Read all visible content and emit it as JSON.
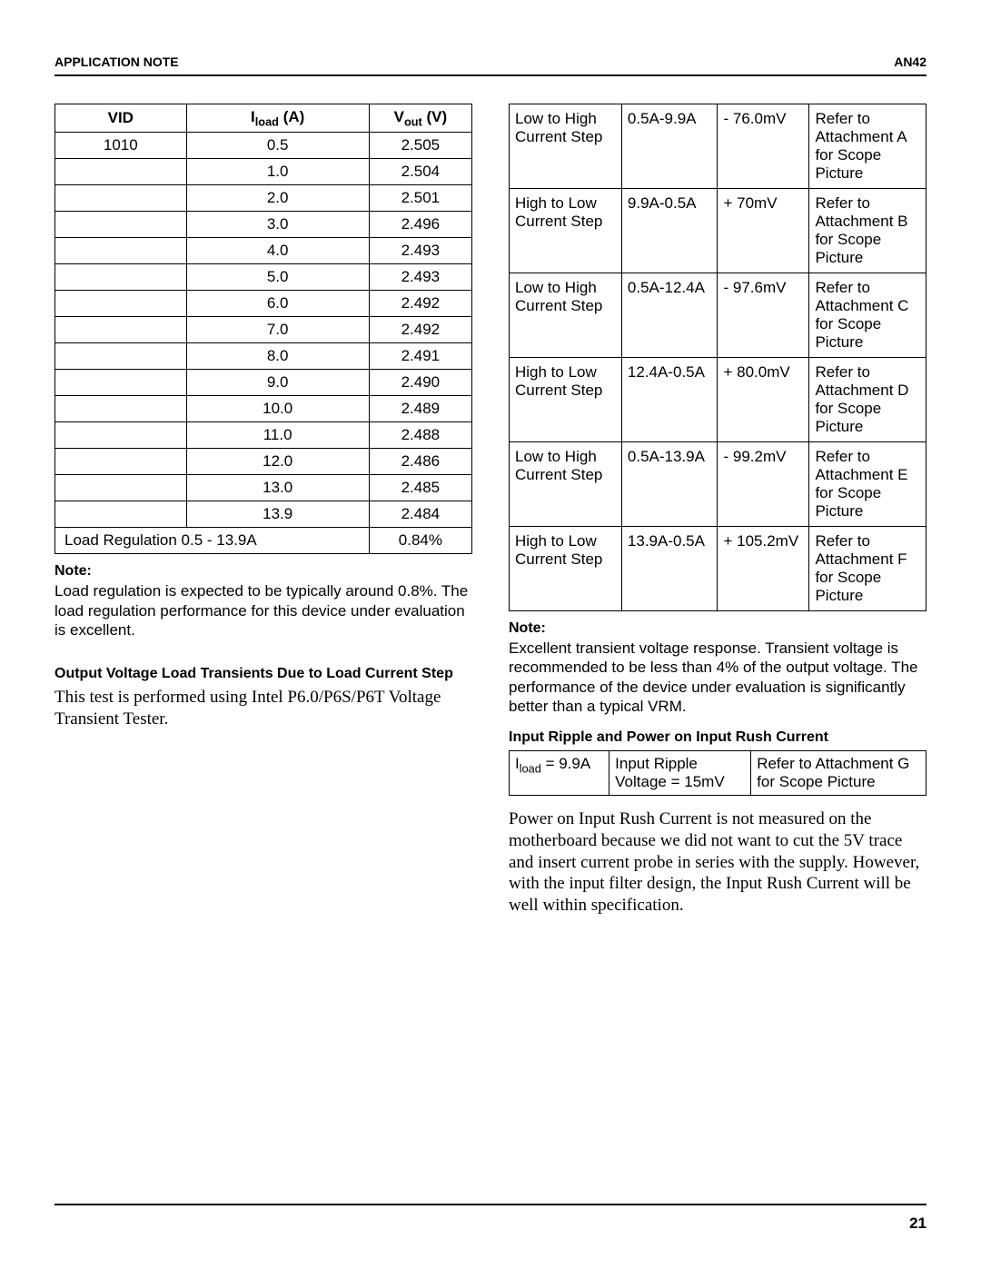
{
  "header": {
    "left": "APPLICATION NOTE",
    "right": "AN42"
  },
  "table1": {
    "headers": {
      "c1": "VID",
      "c2_pre": "I",
      "c2_sub": "load",
      "c2_post": " (A)",
      "c3_pre": "V",
      "c3_sub": "out",
      "c3_post": " (V)"
    },
    "rows": [
      {
        "vid": "1010",
        "iload": "0.5",
        "vout": "2.505"
      },
      {
        "vid": "",
        "iload": "1.0",
        "vout": "2.504"
      },
      {
        "vid": "",
        "iload": "2.0",
        "vout": "2.501"
      },
      {
        "vid": "",
        "iload": "3.0",
        "vout": "2.496"
      },
      {
        "vid": "",
        "iload": "4.0",
        "vout": "2.493"
      },
      {
        "vid": "",
        "iload": "5.0",
        "vout": "2.493"
      },
      {
        "vid": "",
        "iload": "6.0",
        "vout": "2.492"
      },
      {
        "vid": "",
        "iload": "7.0",
        "vout": "2.492"
      },
      {
        "vid": "",
        "iload": "8.0",
        "vout": "2.491"
      },
      {
        "vid": "",
        "iload": "9.0",
        "vout": "2.490"
      },
      {
        "vid": "",
        "iload": "10.0",
        "vout": "2.489"
      },
      {
        "vid": "",
        "iload": "11.0",
        "vout": "2.488"
      },
      {
        "vid": "",
        "iload": "12.0",
        "vout": "2.486"
      },
      {
        "vid": "",
        "iload": "13.0",
        "vout": "2.485"
      },
      {
        "vid": "",
        "iload": "13.9",
        "vout": "2.484"
      }
    ],
    "footer": {
      "label": "Load Regulation 0.5 - 13.9A",
      "value": "0.84%"
    }
  },
  "note1": {
    "head": "Note:",
    "body": "Load regulation is expected to be typically around 0.8%. The load regulation performance for this device under evaluation is excellent."
  },
  "section1": {
    "head": "Output Voltage Load Transients Due to Load Current Step",
    "body": "This test is performed using Intel P6.0/P6S/P6T Voltage Transient Tester."
  },
  "table2": {
    "rows": [
      {
        "step": "Low to High Current Step",
        "range": "0.5A-9.9A",
        "mv": "- 76.0mV",
        "ref": "Refer to Attachment A for Scope Picture"
      },
      {
        "step": "High to Low Current Step",
        "range": "9.9A-0.5A",
        "mv": "+ 70mV",
        "ref": "Refer to Attachment B for Scope Picture"
      },
      {
        "step": "Low to High Current Step",
        "range": "0.5A-12.4A",
        "mv": "- 97.6mV",
        "ref": "Refer to Attachment C for Scope Picture"
      },
      {
        "step": "High to Low Current Step",
        "range": "12.4A-0.5A",
        "mv": "+ 80.0mV",
        "ref": "Refer to Attachment D for Scope Picture"
      },
      {
        "step": "Low to High Current Step",
        "range": "0.5A-13.9A",
        "mv": "- 99.2mV",
        "ref": "Refer to Attachment E for Scope Picture"
      },
      {
        "step": "High to Low Current Step",
        "range": "13.9A-0.5A",
        "mv": "+ 105.2mV",
        "ref": "Refer to Attachment F for Scope Picture"
      }
    ],
    "colwidths": [
      "27%",
      "23%",
      "22%",
      "28%"
    ]
  },
  "note2": {
    "head": "Note:",
    "body": "Excellent transient voltage response. Transient voltage is recommended to be less than 4% of the output voltage. The performance of the device under evaluation is significantly better than a typical VRM."
  },
  "section2": {
    "head": "Input Ripple and Power on Input Rush Current"
  },
  "table3": {
    "c1_pre": "I",
    "c1_sub": "load",
    "c1_post": " = 9.9A",
    "c2": "Input Ripple Voltage = 15mV",
    "c3": "Refer to Attachment G for Scope Picture",
    "colwidths": [
      "24%",
      "34%",
      "42%"
    ]
  },
  "para2": "Power on Input Rush Current is not measured on the motherboard because we did not want to cut the 5V trace and insert current probe in series with the supply. However, with the input filter design, the Input Rush Current will be well within specification.",
  "footer": {
    "page": "21"
  }
}
